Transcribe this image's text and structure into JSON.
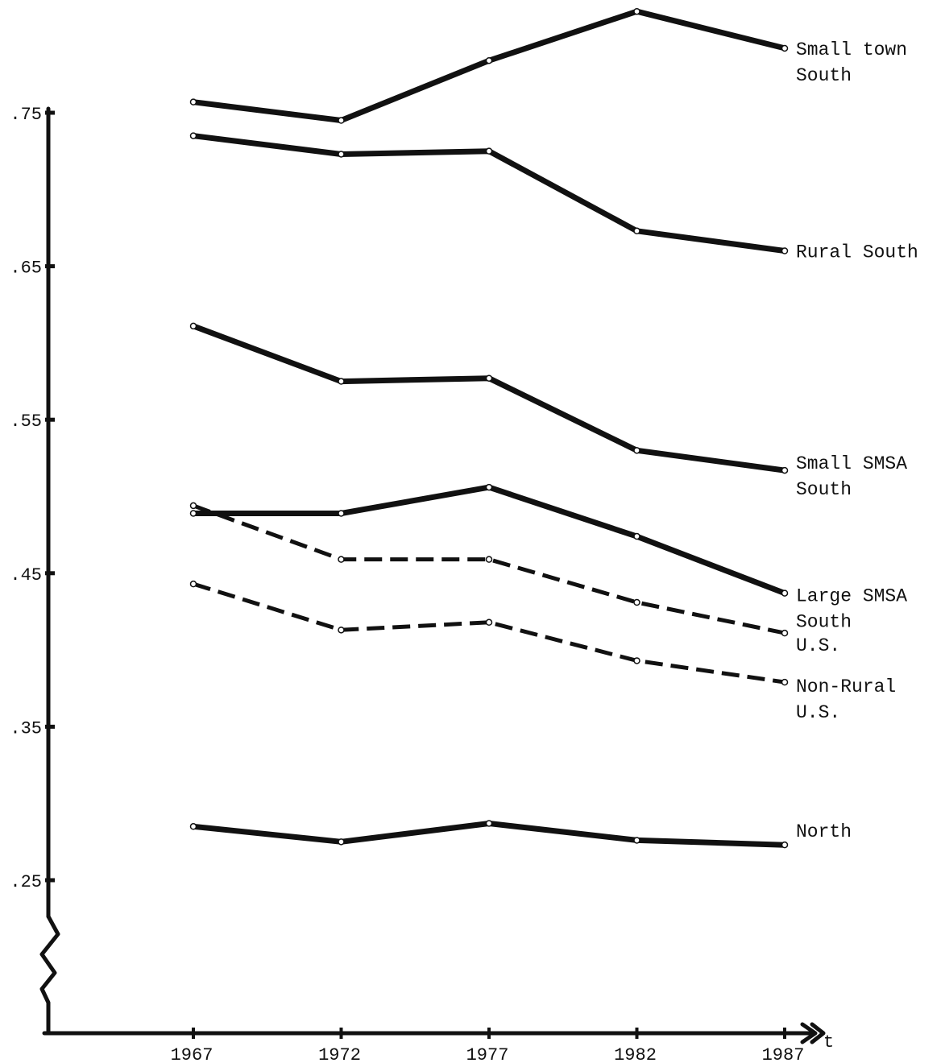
{
  "chart_data": {
    "type": "line",
    "title": "",
    "xlabel": "t",
    "ylabel": "",
    "x": [
      1967,
      1972,
      1977,
      1982,
      1987
    ],
    "x_tick_labels": [
      "1967",
      "1972",
      "1977",
      "1982",
      "1987"
    ],
    "y_ticks": [
      0.25,
      0.35,
      0.45,
      0.55,
      0.65,
      0.75
    ],
    "y_tick_labels": [
      ".25",
      ".35",
      ".45",
      ".55",
      ".65",
      ".75"
    ],
    "ylim": [
      0.16,
      0.82
    ],
    "y_axis_break": true,
    "grid": false,
    "legend": "labels at right end of each line",
    "series": [
      {
        "name": "Small town South",
        "label_lines": [
          "Small town",
          " South"
        ],
        "style": "solid",
        "values": [
          0.757,
          0.745,
          0.784,
          0.816,
          0.792
        ]
      },
      {
        "name": "Rural South",
        "label_lines": [
          "Rural South"
        ],
        "style": "solid",
        "values": [
          0.735,
          0.723,
          0.725,
          0.673,
          0.66
        ]
      },
      {
        "name": "Small SMSA South",
        "label_lines": [
          "Small SMSA",
          " South"
        ],
        "style": "solid",
        "values": [
          0.611,
          0.575,
          0.577,
          0.53,
          0.517
        ]
      },
      {
        "name": "Large SMSA South",
        "label_lines": [
          "Large SMSA",
          " South"
        ],
        "style": "solid",
        "values": [
          0.489,
          0.489,
          0.506,
          0.474,
          0.437
        ]
      },
      {
        "name": "U.S.",
        "label_lines": [
          "U.S."
        ],
        "style": "dashed",
        "values": [
          0.494,
          0.459,
          0.459,
          0.431,
          0.411
        ]
      },
      {
        "name": "Non-Rural U.S.",
        "label_lines": [
          "Non-Rural",
          "U.S."
        ],
        "style": "dashed",
        "values": [
          0.443,
          0.413,
          0.418,
          0.393,
          0.379
        ]
      },
      {
        "name": "North",
        "label_lines": [
          "North"
        ],
        "style": "solid",
        "values": [
          0.285,
          0.275,
          0.287,
          0.276,
          0.273
        ]
      }
    ]
  }
}
